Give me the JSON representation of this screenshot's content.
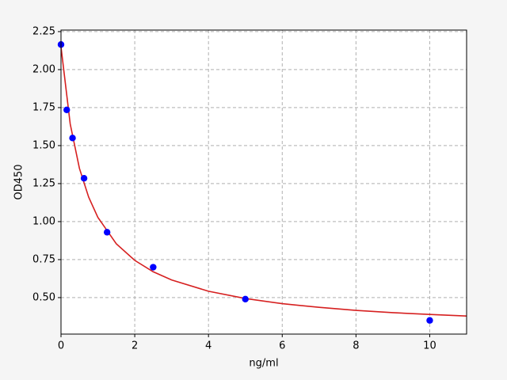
{
  "chart_data": {
    "type": "scatter",
    "xlabel": "ng/ml",
    "ylabel": "OD450",
    "xlim": [
      0,
      11
    ],
    "ylim": [
      0.26,
      2.26
    ],
    "xticks": [
      0,
      2,
      4,
      6,
      8,
      10
    ],
    "yticks": [
      {
        "value": 0.5,
        "label": "0.50"
      },
      {
        "value": 0.75,
        "label": "0.75"
      },
      {
        "value": 1,
        "label": "1.00"
      },
      {
        "value": 1.25,
        "label": "1.25"
      },
      {
        "value": 1.5,
        "label": "1.50"
      },
      {
        "value": 1.75,
        "label": "1.75"
      },
      {
        "value": 2,
        "label": "2.00"
      },
      {
        "value": 2.25,
        "label": "2.25"
      }
    ],
    "grid": true,
    "series": [
      {
        "type": "scatter",
        "color": "#0000ff",
        "x": [
          0,
          0.156,
          0.3125,
          0.625,
          1.25,
          2.5,
          5,
          10
        ],
        "values": [
          2.165,
          1.735,
          1.55,
          1.285,
          0.93,
          0.7,
          0.49,
          0.35
        ]
      },
      {
        "type": "line",
        "color": "#d62020",
        "x": [
          0,
          0.25,
          0.5,
          0.75,
          1,
          1.5,
          2,
          2.5,
          3,
          4,
          5,
          6,
          7,
          8,
          9,
          10,
          11
        ],
        "values": [
          2.15,
          1.642,
          1.35,
          1.161,
          1.028,
          0.854,
          0.745,
          0.67,
          0.616,
          0.542,
          0.494,
          0.46,
          0.436,
          0.416,
          0.401,
          0.389,
          0.379
        ]
      }
    ]
  }
}
